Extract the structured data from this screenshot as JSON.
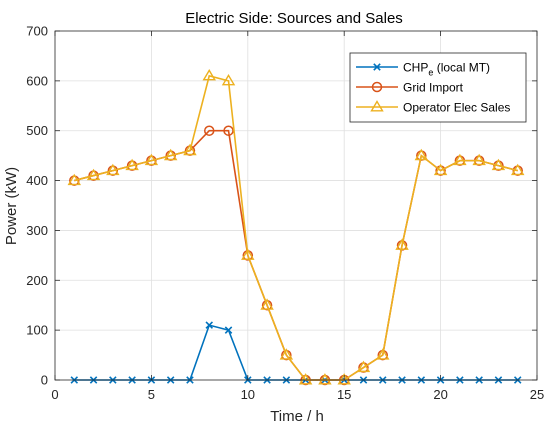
{
  "chart_data": {
    "type": "line",
    "title": "Electric Side: Sources and Sales",
    "xlabel": "Time / h",
    "ylabel": "Power (kW)",
    "xlim": [
      0,
      25
    ],
    "ylim": [
      0,
      700
    ],
    "xticks": [
      0,
      5,
      10,
      15,
      20,
      25
    ],
    "yticks": [
      0,
      100,
      200,
      300,
      400,
      500,
      600,
      700
    ],
    "grid": true,
    "legend_position": "top-right",
    "x": [
      1,
      2,
      3,
      4,
      5,
      6,
      7,
      8,
      9,
      10,
      11,
      12,
      13,
      14,
      15,
      16,
      17,
      18,
      19,
      20,
      21,
      22,
      23,
      24
    ],
    "series": [
      {
        "name": "CHP_e (local MT)",
        "legend_main": "CHP",
        "legend_sub": "e",
        "legend_rest": " (local MT)",
        "color": "#0072BD",
        "marker": "x",
        "values": [
          0,
          0,
          0,
          0,
          0,
          0,
          0,
          110,
          100,
          0,
          0,
          0,
          0,
          0,
          0,
          0,
          0,
          0,
          0,
          0,
          0,
          0,
          0,
          0
        ]
      },
      {
        "name": "Grid Import",
        "color": "#D95319",
        "marker": "circle",
        "values": [
          400,
          410,
          420,
          430,
          440,
          450,
          460,
          500,
          500,
          250,
          150,
          50,
          0,
          0,
          0,
          25,
          50,
          270,
          450,
          420,
          440,
          440,
          430,
          420
        ]
      },
      {
        "name": "Operator Elec Sales",
        "color": "#EDB120",
        "marker": "triangle",
        "values": [
          400,
          410,
          420,
          430,
          440,
          450,
          460,
          610,
          600,
          250,
          150,
          50,
          0,
          0,
          0,
          25,
          50,
          270,
          450,
          420,
          440,
          440,
          430,
          420
        ]
      }
    ]
  }
}
